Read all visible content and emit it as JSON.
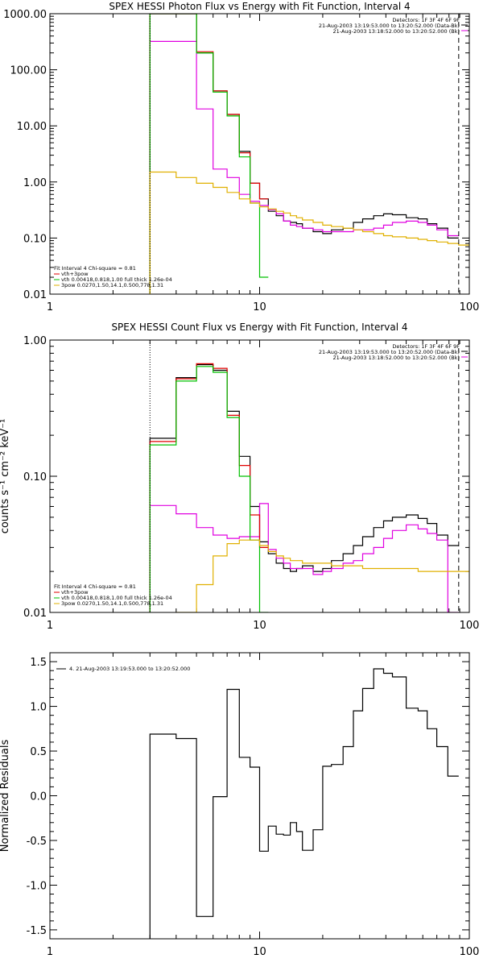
{
  "chart_data": [
    {
      "type": "line",
      "title": "SPEX HESSI Photon Flux vs Energy with Fit Function, Interval 4",
      "xlabel": "",
      "ylabel": "",
      "xscale": "log",
      "yscale": "log",
      "xlim": [
        1,
        100
      ],
      "ylim": [
        0.01,
        1000
      ],
      "xticks": [
        {
          "v": 1,
          "label": "1"
        },
        {
          "v": 10,
          "label": "10"
        },
        {
          "v": 100,
          "label": "100"
        }
      ],
      "yticks": [
        {
          "v": 0.01,
          "label": "0.01"
        },
        {
          "v": 0.1,
          "label": "0.10"
        },
        {
          "v": 1,
          "label": "1.00"
        },
        {
          "v": 10,
          "label": "10.00"
        },
        {
          "v": 100,
          "label": "100.00"
        },
        {
          "v": 1000,
          "label": "1000.00"
        }
      ],
      "info_right": [
        "Detectors: 1F 3F 4F 6F 9F",
        "21-Aug-2003 13:19:53.000 to 13:20:52.000 (Data-Bk)",
        "21-Aug-2003 13:18:52.000 to 13:20:52.000 (Bk)"
      ],
      "info_left": [
        "Fit Interval  4    Chi-square = 0.81",
        "vth+3pow",
        "vth 0.00418,0.818,1.00  full thick 1.26e-04",
        "3pow 0.0270,1.50,14.1,0.500,778,1.31"
      ],
      "vlines": [
        {
          "x": 3,
          "style": "dotted"
        },
        {
          "x": 89,
          "style": "dashed"
        }
      ],
      "series": [
        {
          "name": "Data-Bk",
          "color": "#000000",
          "edges": [
            3,
            4,
            5,
            6,
            7,
            8,
            9,
            10,
            11,
            12,
            13,
            14,
            15,
            16,
            18,
            20,
            22,
            25,
            28,
            31,
            35,
            39,
            43,
            50,
            57,
            63,
            70,
            79,
            89
          ],
          "values": [
            1000,
            1000,
            200,
            42,
            16,
            3.5,
            0.95,
            0.5,
            0.3,
            0.25,
            0.2,
            0.19,
            0.18,
            0.15,
            0.13,
            0.12,
            0.14,
            0.15,
            0.19,
            0.22,
            0.25,
            0.27,
            0.26,
            0.23,
            0.22,
            0.18,
            0.15,
            0.1
          ]
        },
        {
          "name": "Bk",
          "color": "#e000e0",
          "edges": [
            3,
            4,
            5,
            6,
            7,
            8,
            9,
            10,
            11,
            12,
            13,
            14,
            15,
            16,
            18,
            20,
            22,
            25,
            28,
            31,
            35,
            39,
            43,
            50,
            57,
            63,
            70,
            79,
            89
          ],
          "values": [
            320,
            320,
            20,
            1.7,
            1.2,
            0.6,
            0.45,
            0.38,
            0.32,
            0.27,
            0.2,
            0.17,
            0.16,
            0.15,
            0.14,
            0.13,
            0.13,
            0.13,
            0.14,
            0.14,
            0.15,
            0.17,
            0.19,
            0.2,
            0.19,
            0.17,
            0.14,
            0.11
          ]
        },
        {
          "name": "fit",
          "color": "#e00000",
          "edges": [
            3,
            4,
            5,
            6,
            7,
            8,
            9,
            10,
            11
          ],
          "values": [
            1000,
            1000,
            210,
            42,
            16,
            3.3,
            0.95,
            0.5
          ]
        },
        {
          "name": "vth",
          "color": "#00c000",
          "edges": [
            3,
            4,
            5,
            6,
            7,
            8,
            9,
            10,
            11
          ],
          "values": [
            1000,
            1000,
            200,
            40,
            15,
            2.8,
            0.42,
            0.02
          ]
        },
        {
          "name": "3pow",
          "color": "#e0b000",
          "edges": [
            3,
            4,
            5,
            6,
            7,
            8,
            9,
            10,
            11,
            12,
            13,
            14,
            15,
            16,
            18,
            20,
            22,
            25,
            28,
            31,
            35,
            39,
            43,
            50,
            57,
            63,
            70,
            79,
            89,
            100
          ],
          "values": [
            1.5,
            1.2,
            0.95,
            0.8,
            0.65,
            0.5,
            0.42,
            0.36,
            0.33,
            0.3,
            0.28,
            0.25,
            0.23,
            0.21,
            0.19,
            0.17,
            0.16,
            0.15,
            0.14,
            0.13,
            0.12,
            0.11,
            0.105,
            0.1,
            0.095,
            0.09,
            0.085,
            0.08,
            0.075
          ]
        }
      ]
    },
    {
      "type": "line",
      "title": "SPEX HESSI Count Flux vs Energy with Fit Function, Interval 4",
      "xlabel": "",
      "ylabel": "counts s⁻¹ cm⁻² keV⁻¹",
      "xscale": "log",
      "yscale": "log",
      "xlim": [
        1,
        100
      ],
      "ylim": [
        0.01,
        1
      ],
      "xticks": [
        {
          "v": 1,
          "label": "1"
        },
        {
          "v": 10,
          "label": "10"
        },
        {
          "v": 100,
          "label": "100"
        }
      ],
      "yticks": [
        {
          "v": 0.01,
          "label": "0.01"
        },
        {
          "v": 0.1,
          "label": "0.10"
        },
        {
          "v": 1,
          "label": "1.00"
        }
      ],
      "info_right": [
        "Detectors: 1F 3F 4F 6F 9F",
        "21-Aug-2003 13:19:53.000 to 13:20:52.000 (Data-Bk)",
        "21-Aug-2003 13:18:52.000 to 13:20:52.000 (Bk)"
      ],
      "info_left": [
        "Fit Interval  4    Chi-square = 0.81",
        "vth+3pow",
        "vth 0.00418,0.818,1.00  full thick 1.26e-04",
        "3pow 0.0270,1.50,14.1,0.500,778,1.31"
      ],
      "vlines": [
        {
          "x": 3,
          "style": "dotted"
        },
        {
          "x": 89,
          "style": "dashed"
        }
      ],
      "series": [
        {
          "name": "Data-Bk",
          "color": "#000000",
          "edges": [
            3,
            4,
            5,
            6,
            7,
            8,
            9,
            10,
            11,
            12,
            13,
            14,
            15,
            16,
            18,
            20,
            22,
            25,
            28,
            31,
            35,
            39,
            43,
            50,
            57,
            63,
            70,
            79,
            89
          ],
          "values": [
            0.19,
            0.53,
            0.66,
            0.6,
            0.3,
            0.14,
            0.06,
            0.033,
            0.027,
            0.023,
            0.021,
            0.02,
            0.021,
            0.022,
            0.02,
            0.021,
            0.024,
            0.027,
            0.031,
            0.036,
            0.042,
            0.047,
            0.05,
            0.052,
            0.049,
            0.045,
            0.037,
            0.031
          ]
        },
        {
          "name": "Bk",
          "color": "#e000e0",
          "edges": [
            3,
            4,
            5,
            6,
            7,
            8,
            9,
            10,
            11,
            12,
            13,
            14,
            15,
            16,
            18,
            20,
            22,
            25,
            28,
            31,
            35,
            39,
            43,
            50,
            57,
            63,
            70,
            79,
            89
          ],
          "values": [
            0.061,
            0.053,
            0.042,
            0.037,
            0.035,
            0.036,
            0.036,
            0.063,
            0.029,
            0.025,
            0.023,
            0.021,
            0.021,
            0.021,
            0.019,
            0.02,
            0.021,
            0.023,
            0.024,
            0.027,
            0.03,
            0.035,
            0.04,
            0.044,
            0.041,
            0.038,
            0.034,
            0.01
          ]
        },
        {
          "name": "fit",
          "color": "#e00000",
          "edges": [
            3,
            4,
            5,
            6,
            7,
            8,
            9,
            10,
            11
          ],
          "values": [
            0.18,
            0.52,
            0.67,
            0.62,
            0.28,
            0.12,
            0.052,
            0.03
          ]
        },
        {
          "name": "vth",
          "color": "#00c000",
          "edges": [
            3,
            4,
            5,
            6,
            7,
            8,
            9,
            10,
            11
          ],
          "values": [
            0.17,
            0.5,
            0.64,
            0.58,
            0.27,
            0.1,
            0.034,
            0.01
          ]
        },
        {
          "name": "3pow",
          "color": "#e0b000",
          "edges": [
            4,
            5,
            6,
            7,
            8,
            9,
            10,
            11,
            12,
            13,
            14,
            15,
            16,
            18,
            20,
            22,
            25,
            28,
            31,
            35,
            39,
            43,
            50,
            57,
            63,
            70,
            79,
            89,
            100
          ],
          "values": [
            0.01,
            0.016,
            0.026,
            0.032,
            0.034,
            0.034,
            0.031,
            0.028,
            0.026,
            0.025,
            0.024,
            0.024,
            0.023,
            0.023,
            0.023,
            0.022,
            0.022,
            0.022,
            0.021,
            0.021,
            0.021,
            0.021,
            0.021,
            0.02,
            0.02,
            0.02,
            0.02,
            0.02
          ]
        }
      ]
    },
    {
      "type": "line",
      "title": "",
      "xlabel": "",
      "ylabel": "Normalized Residuals",
      "xscale": "log",
      "yscale": "linear",
      "xlim": [
        1,
        100
      ],
      "ylim": [
        -1.6,
        1.6
      ],
      "xticks": [
        {
          "v": 1,
          "label": "1"
        },
        {
          "v": 10,
          "label": "10"
        },
        {
          "v": 100,
          "label": "100"
        }
      ],
      "yticks": [
        {
          "v": -1.5,
          "label": "-1.5"
        },
        {
          "v": -1.0,
          "label": "-1.0"
        },
        {
          "v": -0.5,
          "label": "-0.5"
        },
        {
          "v": 0.0,
          "label": "0.0"
        },
        {
          "v": 0.5,
          "label": "0.5"
        },
        {
          "v": 1.0,
          "label": "1.0"
        },
        {
          "v": 1.5,
          "label": "1.5"
        }
      ],
      "legend": "4. 21-Aug-2003 13:19:53.000 to 13:20:52.000",
      "series": [
        {
          "name": "4. 21-Aug-2003 13:19:53.000 to 13:20:52.000",
          "color": "#000000",
          "edges": [
            3,
            4,
            5,
            6,
            7,
            8,
            9,
            10,
            11,
            12,
            13,
            14,
            15,
            16,
            18,
            20,
            22,
            25,
            28,
            31,
            35,
            39,
            43,
            50,
            57,
            63,
            70,
            79,
            89
          ],
          "values": [
            0.69,
            0.64,
            -1.35,
            -0.01,
            1.19,
            0.43,
            0.32,
            -0.62,
            -0.34,
            -0.43,
            -0.44,
            -0.3,
            -0.4,
            -0.61,
            -0.38,
            0.33,
            0.35,
            0.55,
            0.95,
            1.2,
            1.42,
            1.37,
            1.33,
            0.98,
            0.95,
            0.75,
            0.55,
            0.22
          ]
        }
      ]
    }
  ]
}
